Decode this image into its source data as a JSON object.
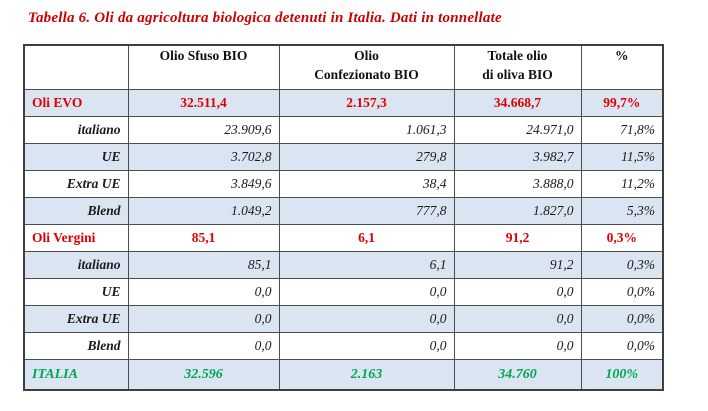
{
  "title": "Tabella 6. Oli da agricoltura biologica detenuti in Italia. Dati in tonnellate",
  "colors": {
    "title_red": "#cc0000",
    "value_red": "#de0000",
    "total_green": "#00a651",
    "band_blue": "#dbe5f1"
  },
  "table": {
    "headers": [
      {
        "line1": "",
        "line2": ""
      },
      {
        "line1": "Olio Sfuso BIO",
        "line2": ""
      },
      {
        "line1": "Olio",
        "line2": "Confezionato BIO"
      },
      {
        "line1": "Totale olio",
        "line2": "di oliva BIO"
      },
      {
        "line1": "%",
        "line2": ""
      }
    ],
    "rows": [
      {
        "cells": [
          "Oli EVO",
          "32.511,4",
          "2.157,3",
          "34.668,7",
          "99,7%"
        ]
      },
      {
        "cells": [
          "italiano",
          "23.909,6",
          "1.061,3",
          "24.971,0",
          "71,8%"
        ]
      },
      {
        "cells": [
          "UE",
          "3.702,8",
          "279,8",
          "3.982,7",
          "11,5%"
        ]
      },
      {
        "cells": [
          "Extra UE",
          "3.849,6",
          "38,4",
          "3.888,0",
          "11,2%"
        ]
      },
      {
        "cells": [
          "Blend",
          "1.049,2",
          "777,8",
          "1.827,0",
          "5,3%"
        ]
      },
      {
        "cells": [
          "Oli Vergini",
          "85,1",
          "6,1",
          "91,2",
          "0,3%"
        ]
      },
      {
        "cells": [
          "italiano",
          "85,1",
          "6,1",
          "91,2",
          "0,3%"
        ]
      },
      {
        "cells": [
          "UE",
          "0,0",
          "0,0",
          "0,0",
          "0,0%"
        ]
      },
      {
        "cells": [
          "Extra UE",
          "0,0",
          "0,0",
          "0,0",
          "0,0%"
        ]
      },
      {
        "cells": [
          "Blend",
          "0,0",
          "0,0",
          "0,0",
          "0,0%"
        ]
      },
      {
        "cells": [
          "ITALIA",
          "32.596",
          "2.163",
          "34.760",
          "100%"
        ]
      }
    ]
  }
}
